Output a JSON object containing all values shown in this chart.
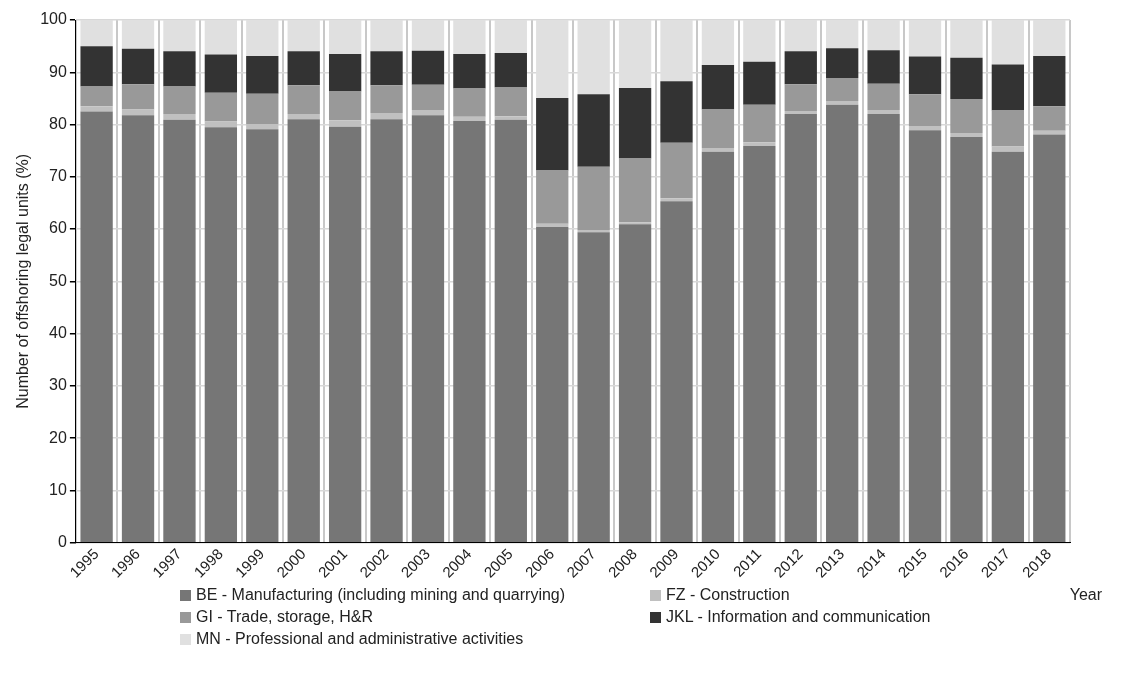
{
  "chart_data": {
    "type": "bar",
    "stacked": true,
    "xlabel": "Year",
    "ylabel": "Number of offshoring legal units (%)",
    "categories": [
      "1995",
      "1996",
      "1997",
      "1998",
      "1999",
      "2000",
      "2001",
      "2002",
      "2003",
      "2004",
      "2005",
      "2006",
      "2007",
      "2008",
      "2009",
      "2010",
      "2011",
      "2012",
      "2013",
      "2014",
      "2015",
      "2016",
      "2017",
      "2018"
    ],
    "series": [
      {
        "name": "BE - Manufacturing (including mining and quarrying)",
        "color": "#767676",
        "values": [
          82.5,
          81.8,
          80.9,
          79.5,
          79.1,
          81.0,
          79.6,
          81.0,
          81.8,
          80.7,
          80.9,
          60.4,
          59.4,
          60.9,
          65.3,
          74.8,
          75.9,
          82.0,
          83.8,
          82.0,
          78.9,
          77.6,
          74.8,
          78.1
        ]
      },
      {
        "name": "FZ - Construction",
        "color": "#c0c0c0",
        "values": [
          1.0,
          1.1,
          1.1,
          1.1,
          1.0,
          1.0,
          1.2,
          1.2,
          1.0,
          0.8,
          0.7,
          0.6,
          0.4,
          0.4,
          0.6,
          0.7,
          0.7,
          0.6,
          0.7,
          0.8,
          0.8,
          0.8,
          1.0,
          0.7
        ]
      },
      {
        "name": "GI - Trade, storage, H&R",
        "color": "#999999",
        "values": [
          3.8,
          4.8,
          5.3,
          5.5,
          5.8,
          5.5,
          5.5,
          5.3,
          4.8,
          5.4,
          5.5,
          10.2,
          12.1,
          12.2,
          10.6,
          7.4,
          7.2,
          5.1,
          4.4,
          5.0,
          6.1,
          6.5,
          6.9,
          4.7
        ]
      },
      {
        "name": "JKL - Information and communication",
        "color": "#333333",
        "values": [
          7.7,
          6.8,
          6.7,
          7.3,
          7.2,
          6.5,
          7.2,
          6.5,
          6.5,
          6.6,
          6.6,
          13.9,
          13.9,
          13.5,
          11.8,
          8.5,
          8.2,
          6.3,
          5.7,
          6.4,
          7.2,
          7.9,
          8.8,
          9.6
        ]
      },
      {
        "name": "MN - Professional and administrative activities",
        "color": "#e0e0e0",
        "values": [
          5.0,
          5.5,
          6.0,
          6.6,
          6.9,
          6.0,
          6.5,
          6.0,
          5.9,
          6.5,
          6.3,
          14.9,
          14.2,
          13.0,
          11.7,
          8.6,
          8.0,
          6.0,
          5.4,
          5.8,
          7.0,
          7.2,
          8.5,
          6.9
        ]
      }
    ],
    "ylim": [
      0,
      100
    ],
    "yticks": [
      0,
      10,
      20,
      30,
      40,
      50,
      60,
      70,
      80,
      90,
      100
    ],
    "grid": true,
    "legend": "bottom"
  }
}
